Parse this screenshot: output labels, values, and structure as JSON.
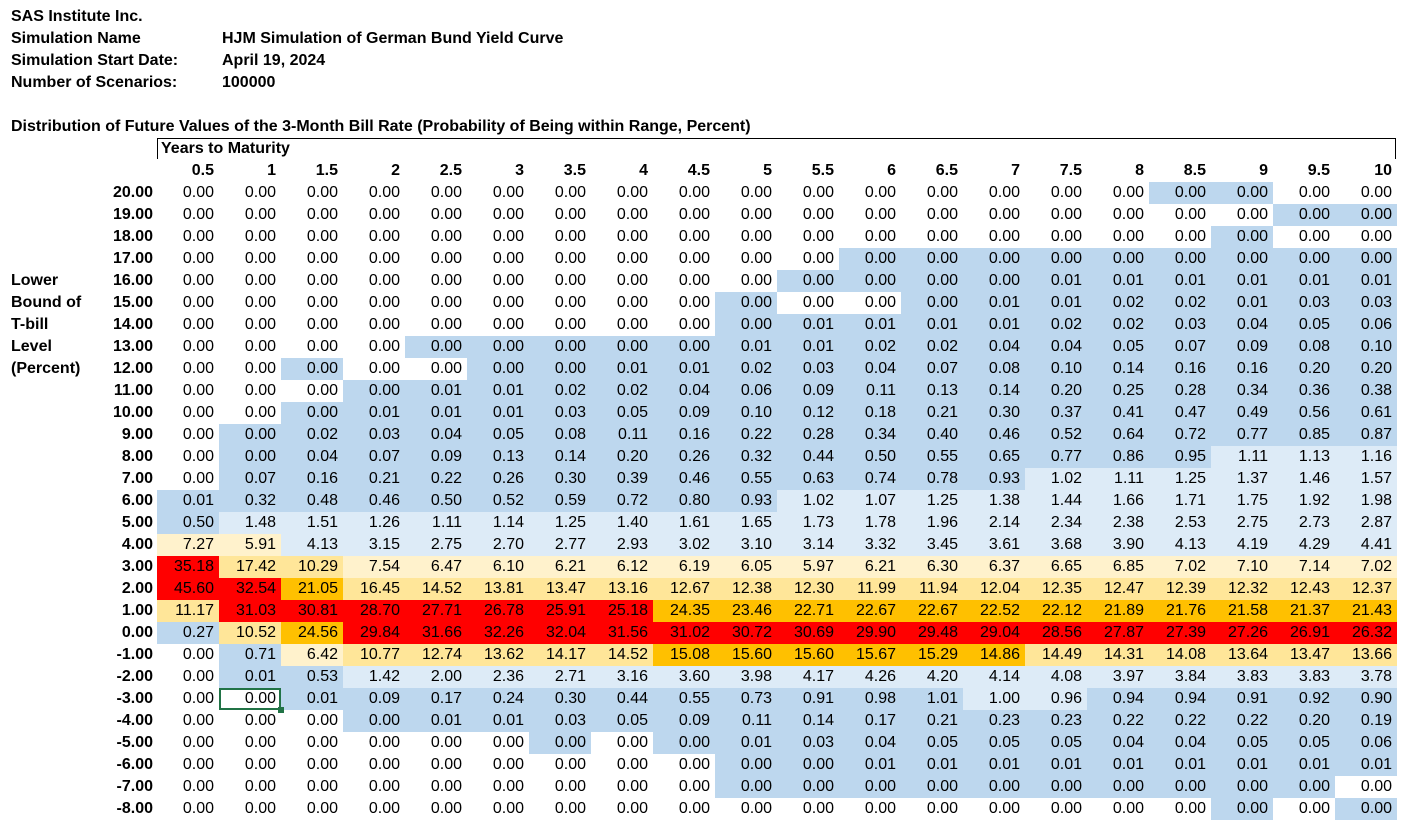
{
  "header": {
    "company": "SAS Institute Inc.",
    "sim_name_label": "Simulation Name",
    "sim_name": "HJM Simulation of German Bund Yield Curve",
    "start_label": "Simulation Start Date:",
    "start_date": "April 19, 2024",
    "scenarios_label": "Number of Scenarios:",
    "scenarios": "100000"
  },
  "table": {
    "title": "Distribution of Future Values of the 3-Month Bill Rate (Probability of Being within Range, Percent)",
    "years_header": "Years to Maturity",
    "row_axis_label": [
      "Lower",
      "Bound of",
      "T-bill",
      "Level",
      "(Percent)"
    ],
    "maturities": [
      "0.5",
      "1",
      "1.5",
      "2",
      "2.5",
      "3",
      "3.5",
      "4",
      "4.5",
      "5",
      "5.5",
      "6",
      "6.5",
      "7",
      "7.5",
      "8",
      "8.5",
      "9",
      "9.5",
      "10"
    ],
    "selected_cell": "-3.00@2",
    "colors": {
      "0": "#ffffff",
      "1": "#bdd7ee",
      "2": "#ddebf7",
      "3": "#fff2cc",
      "4": "#ffe699",
      "5": "#ffc000",
      "6": "#ff0000"
    },
    "rows": [
      {
        "label": "20.00",
        "values": [
          "0.00",
          "0.00",
          "0.00",
          "0.00",
          "0.00",
          "0.00",
          "0.00",
          "0.00",
          "0.00",
          "0.00",
          "0.00",
          "0.00",
          "0.00",
          "0.00",
          "0.00",
          "0.00",
          "0.00",
          "0.00",
          "0.00",
          "0.00"
        ],
        "colors": "00000000000000001100"
      },
      {
        "label": "19.00",
        "values": [
          "0.00",
          "0.00",
          "0.00",
          "0.00",
          "0.00",
          "0.00",
          "0.00",
          "0.00",
          "0.00",
          "0.00",
          "0.00",
          "0.00",
          "0.00",
          "0.00",
          "0.00",
          "0.00",
          "0.00",
          "0.00",
          "0.00",
          "0.00"
        ],
        "colors": "00000000000000000011"
      },
      {
        "label": "18.00",
        "values": [
          "0.00",
          "0.00",
          "0.00",
          "0.00",
          "0.00",
          "0.00",
          "0.00",
          "0.00",
          "0.00",
          "0.00",
          "0.00",
          "0.00",
          "0.00",
          "0.00",
          "0.00",
          "0.00",
          "0.00",
          "0.00",
          "0.00",
          "0.00"
        ],
        "colors": "00000000000000000100"
      },
      {
        "label": "17.00",
        "values": [
          "0.00",
          "0.00",
          "0.00",
          "0.00",
          "0.00",
          "0.00",
          "0.00",
          "0.00",
          "0.00",
          "0.00",
          "0.00",
          "0.00",
          "0.00",
          "0.00",
          "0.00",
          "0.00",
          "0.00",
          "0.00",
          "0.00",
          "0.00"
        ],
        "colors": "00000000000111111111"
      },
      {
        "label": "16.00",
        "values": [
          "0.00",
          "0.00",
          "0.00",
          "0.00",
          "0.00",
          "0.00",
          "0.00",
          "0.00",
          "0.00",
          "0.00",
          "0.00",
          "0.00",
          "0.00",
          "0.00",
          "0.01",
          "0.01",
          "0.01",
          "0.01",
          "0.01",
          "0.01"
        ],
        "colors": "00000000001111111111"
      },
      {
        "label": "15.00",
        "values": [
          "0.00",
          "0.00",
          "0.00",
          "0.00",
          "0.00",
          "0.00",
          "0.00",
          "0.00",
          "0.00",
          "0.00",
          "0.00",
          "0.00",
          "0.00",
          "0.01",
          "0.01",
          "0.02",
          "0.02",
          "0.01",
          "0.03",
          "0.03"
        ],
        "colors": "00000000010011111111"
      },
      {
        "label": "14.00",
        "values": [
          "0.00",
          "0.00",
          "0.00",
          "0.00",
          "0.00",
          "0.00",
          "0.00",
          "0.00",
          "0.00",
          "0.00",
          "0.01",
          "0.01",
          "0.01",
          "0.01",
          "0.02",
          "0.02",
          "0.03",
          "0.04",
          "0.05",
          "0.06"
        ],
        "colors": "00000000011111111111"
      },
      {
        "label": "13.00",
        "values": [
          "0.00",
          "0.00",
          "0.00",
          "0.00",
          "0.00",
          "0.00",
          "0.00",
          "0.00",
          "0.00",
          "0.01",
          "0.01",
          "0.02",
          "0.02",
          "0.04",
          "0.04",
          "0.05",
          "0.07",
          "0.09",
          "0.08",
          "0.10"
        ],
        "colors": "00001111111111111111"
      },
      {
        "label": "12.00",
        "values": [
          "0.00",
          "0.00",
          "0.00",
          "0.00",
          "0.00",
          "0.00",
          "0.00",
          "0.01",
          "0.01",
          "0.02",
          "0.03",
          "0.04",
          "0.07",
          "0.08",
          "0.10",
          "0.14",
          "0.16",
          "0.16",
          "0.20",
          "0.20"
        ],
        "colors": "00100111111111111111"
      },
      {
        "label": "11.00",
        "values": [
          "0.00",
          "0.00",
          "0.00",
          "0.00",
          "0.01",
          "0.01",
          "0.02",
          "0.02",
          "0.04",
          "0.06",
          "0.09",
          "0.11",
          "0.13",
          "0.14",
          "0.20",
          "0.25",
          "0.28",
          "0.34",
          "0.36",
          "0.38"
        ],
        "colors": "00011111111111111111"
      },
      {
        "label": "10.00",
        "values": [
          "0.00",
          "0.00",
          "0.00",
          "0.01",
          "0.01",
          "0.01",
          "0.03",
          "0.05",
          "0.09",
          "0.10",
          "0.12",
          "0.18",
          "0.21",
          "0.30",
          "0.37",
          "0.41",
          "0.47",
          "0.49",
          "0.56",
          "0.61"
        ],
        "colors": "00111111111111111111"
      },
      {
        "label": "9.00",
        "values": [
          "0.00",
          "0.00",
          "0.02",
          "0.03",
          "0.04",
          "0.05",
          "0.08",
          "0.11",
          "0.16",
          "0.22",
          "0.28",
          "0.34",
          "0.40",
          "0.46",
          "0.52",
          "0.64",
          "0.72",
          "0.77",
          "0.85",
          "0.87"
        ],
        "colors": "01111111111111111111"
      },
      {
        "label": "8.00",
        "values": [
          "0.00",
          "0.00",
          "0.04",
          "0.07",
          "0.09",
          "0.13",
          "0.14",
          "0.20",
          "0.26",
          "0.32",
          "0.44",
          "0.50",
          "0.55",
          "0.65",
          "0.77",
          "0.86",
          "0.95",
          "1.11",
          "1.13",
          "1.16"
        ],
        "colors": "01111111111111111222"
      },
      {
        "label": "7.00",
        "values": [
          "0.00",
          "0.07",
          "0.16",
          "0.21",
          "0.22",
          "0.26",
          "0.30",
          "0.39",
          "0.46",
          "0.55",
          "0.63",
          "0.74",
          "0.78",
          "0.93",
          "1.02",
          "1.11",
          "1.25",
          "1.37",
          "1.46",
          "1.57"
        ],
        "colors": "01111111111111222222"
      },
      {
        "label": "6.00",
        "values": [
          "0.01",
          "0.32",
          "0.48",
          "0.46",
          "0.50",
          "0.52",
          "0.59",
          "0.72",
          "0.80",
          "0.93",
          "1.02",
          "1.07",
          "1.25",
          "1.38",
          "1.44",
          "1.66",
          "1.71",
          "1.75",
          "1.92",
          "1.98"
        ],
        "colors": "11111111112222222222"
      },
      {
        "label": "5.00",
        "values": [
          "0.50",
          "1.48",
          "1.51",
          "1.26",
          "1.11",
          "1.14",
          "1.25",
          "1.40",
          "1.61",
          "1.65",
          "1.73",
          "1.78",
          "1.96",
          "2.14",
          "2.34",
          "2.38",
          "2.53",
          "2.75",
          "2.73",
          "2.87"
        ],
        "colors": "12222222222222222222"
      },
      {
        "label": "4.00",
        "values": [
          "7.27",
          "5.91",
          "4.13",
          "3.15",
          "2.75",
          "2.70",
          "2.77",
          "2.93",
          "3.02",
          "3.10",
          "3.14",
          "3.32",
          "3.45",
          "3.61",
          "3.68",
          "3.90",
          "4.13",
          "4.19",
          "4.29",
          "4.41"
        ],
        "colors": "33222222222222222222"
      },
      {
        "label": "3.00",
        "values": [
          "35.18",
          "17.42",
          "10.29",
          "7.54",
          "6.47",
          "6.10",
          "6.21",
          "6.12",
          "6.19",
          "6.05",
          "5.97",
          "6.21",
          "6.30",
          "6.37",
          "6.65",
          "6.85",
          "7.02",
          "7.10",
          "7.14",
          "7.02"
        ],
        "colors": "64433333333333333333"
      },
      {
        "label": "2.00",
        "values": [
          "45.60",
          "32.54",
          "21.05",
          "16.45",
          "14.52",
          "13.81",
          "13.47",
          "13.16",
          "12.67",
          "12.38",
          "12.30",
          "11.99",
          "11.94",
          "12.04",
          "12.35",
          "12.47",
          "12.39",
          "12.32",
          "12.43",
          "12.37"
        ],
        "colors": "66544444444444444444"
      },
      {
        "label": "1.00",
        "values": [
          "11.17",
          "31.03",
          "30.81",
          "28.70",
          "27.71",
          "26.78",
          "25.91",
          "25.18",
          "24.35",
          "23.46",
          "22.71",
          "22.67",
          "22.67",
          "22.52",
          "22.12",
          "21.89",
          "21.76",
          "21.58",
          "21.37",
          "21.43"
        ],
        "colors": "46666666555555555555"
      },
      {
        "label": "0.00",
        "values": [
          "0.27",
          "10.52",
          "24.56",
          "29.84",
          "31.66",
          "32.26",
          "32.04",
          "31.56",
          "31.02",
          "30.72",
          "30.69",
          "29.90",
          "29.48",
          "29.04",
          "28.56",
          "27.87",
          "27.39",
          "27.26",
          "26.91",
          "26.32"
        ],
        "colors": "14566666666666666666"
      },
      {
        "label": "-1.00",
        "values": [
          "0.00",
          "0.71",
          "6.42",
          "10.77",
          "12.74",
          "13.62",
          "14.17",
          "14.52",
          "15.08",
          "15.60",
          "15.60",
          "15.67",
          "15.29",
          "14.86",
          "14.49",
          "14.31",
          "14.08",
          "13.64",
          "13.47",
          "13.66"
        ],
        "colors": "01344444555555444444"
      },
      {
        "label": "-2.00",
        "values": [
          "0.00",
          "0.01",
          "0.53",
          "1.42",
          "2.00",
          "2.36",
          "2.71",
          "3.16",
          "3.60",
          "3.98",
          "4.17",
          "4.26",
          "4.20",
          "4.14",
          "4.08",
          "3.97",
          "3.84",
          "3.83",
          "3.83",
          "3.78"
        ],
        "colors": "01122222222222222222"
      },
      {
        "label": "-3.00",
        "values": [
          "0.00",
          "0.00",
          "0.01",
          "0.09",
          "0.17",
          "0.24",
          "0.30",
          "0.44",
          "0.55",
          "0.73",
          "0.91",
          "0.98",
          "1.01",
          "1.00",
          "0.96",
          "0.94",
          "0.94",
          "0.91",
          "0.92",
          "0.90"
        ],
        "colors": "00111111111112211111"
      },
      {
        "label": "-4.00",
        "values": [
          "0.00",
          "0.00",
          "0.00",
          "0.00",
          "0.01",
          "0.01",
          "0.03",
          "0.05",
          "0.09",
          "0.11",
          "0.14",
          "0.17",
          "0.21",
          "0.23",
          "0.23",
          "0.22",
          "0.22",
          "0.22",
          "0.20",
          "0.19"
        ],
        "colors": "00011111111111111111"
      },
      {
        "label": "-5.00",
        "values": [
          "0.00",
          "0.00",
          "0.00",
          "0.00",
          "0.00",
          "0.00",
          "0.00",
          "0.00",
          "0.00",
          "0.01",
          "0.03",
          "0.04",
          "0.05",
          "0.05",
          "0.05",
          "0.04",
          "0.04",
          "0.05",
          "0.05",
          "0.06"
        ],
        "colors": "00000010111111111111"
      },
      {
        "label": "-6.00",
        "values": [
          "0.00",
          "0.00",
          "0.00",
          "0.00",
          "0.00",
          "0.00",
          "0.00",
          "0.00",
          "0.00",
          "0.00",
          "0.00",
          "0.01",
          "0.01",
          "0.01",
          "0.01",
          "0.01",
          "0.01",
          "0.01",
          "0.01",
          "0.01"
        ],
        "colors": "00000000011111111111"
      },
      {
        "label": "-7.00",
        "values": [
          "0.00",
          "0.00",
          "0.00",
          "0.00",
          "0.00",
          "0.00",
          "0.00",
          "0.00",
          "0.00",
          "0.00",
          "0.00",
          "0.00",
          "0.00",
          "0.00",
          "0.00",
          "0.00",
          "0.00",
          "0.00",
          "0.00",
          "0.00"
        ],
        "colors": "00000000011111111110"
      },
      {
        "label": "-8.00",
        "values": [
          "0.00",
          "0.00",
          "0.00",
          "0.00",
          "0.00",
          "0.00",
          "0.00",
          "0.00",
          "0.00",
          "0.00",
          "0.00",
          "0.00",
          "0.00",
          "0.00",
          "0.00",
          "0.00",
          "0.00",
          "0.00",
          "0.00",
          "0.00"
        ],
        "colors": "00000000000000000101"
      }
    ]
  }
}
